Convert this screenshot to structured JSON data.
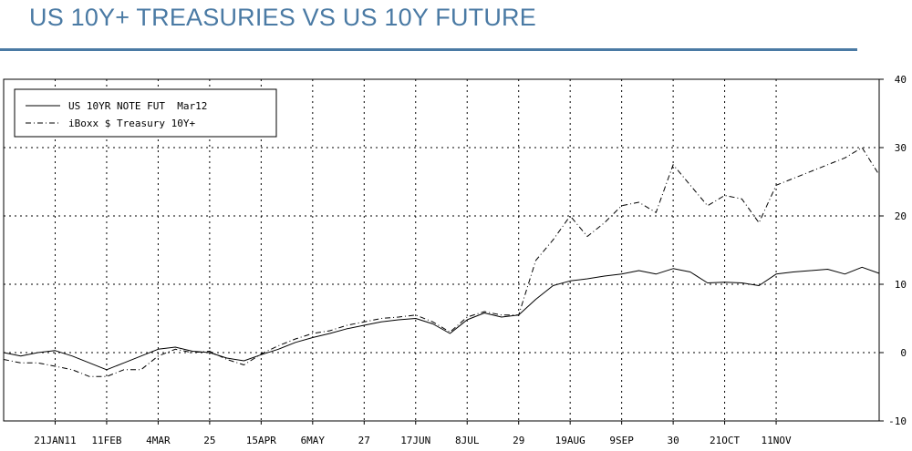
{
  "title": "US 10Y+ TREASURIES VS US 10Y FUTURE",
  "chart_data": {
    "type": "line",
    "xlabel": "",
    "ylabel": "",
    "ylim": [
      -10,
      40
    ],
    "yticks": [
      -10,
      0,
      10,
      20,
      30,
      40
    ],
    "x_range": [
      0,
      255
    ],
    "x_ticks": [
      {
        "label": "21JAN11",
        "pos": 15
      },
      {
        "label": "11FEB",
        "pos": 30
      },
      {
        "label": "4MAR",
        "pos": 45
      },
      {
        "label": "25",
        "pos": 60
      },
      {
        "label": "15APR",
        "pos": 75
      },
      {
        "label": "6MAY",
        "pos": 90
      },
      {
        "label": "27",
        "pos": 105
      },
      {
        "label": "17JUN",
        "pos": 120
      },
      {
        "label": "8JUL",
        "pos": 135
      },
      {
        "label": "29",
        "pos": 150
      },
      {
        "label": "19AUG",
        "pos": 165
      },
      {
        "label": "9SEP",
        "pos": 180
      },
      {
        "label": "30",
        "pos": 195
      },
      {
        "label": "21OCT",
        "pos": 210
      },
      {
        "label": "11NOV",
        "pos": 225
      }
    ],
    "grid": true,
    "legend_position": "top-left",
    "series": [
      {
        "name": "US 10YR NOTE FUT  Mar12",
        "style": "solid",
        "x": [
          0,
          5,
          10,
          15,
          20,
          25,
          30,
          35,
          40,
          45,
          50,
          55,
          60,
          65,
          70,
          75,
          80,
          85,
          90,
          95,
          100,
          105,
          110,
          115,
          120,
          125,
          130,
          135,
          140,
          145,
          150,
          155,
          160,
          165,
          170,
          175,
          180,
          185,
          190,
          195,
          200,
          205,
          210,
          215,
          220,
          225,
          230,
          235,
          240,
          245,
          250,
          255
        ],
        "values": [
          0,
          -0.5,
          0,
          0.3,
          -0.5,
          -1.5,
          -2.5,
          -1.5,
          -0.5,
          0.5,
          0.8,
          0.2,
          0,
          -0.8,
          -1.2,
          -0.3,
          0.5,
          1.5,
          2.2,
          2.8,
          3.5,
          4.0,
          4.5,
          4.8,
          5.0,
          4.2,
          2.8,
          4.8,
          5.8,
          5.2,
          5.5,
          7.8,
          9.8,
          10.5,
          10.8,
          11.2,
          11.5,
          12.0,
          11.5,
          12.3,
          11.8,
          10.2,
          10.3,
          10.2,
          9.8,
          11.5,
          11.8,
          12.0,
          12.2,
          11.5,
          12.5,
          11.6
        ]
      },
      {
        "name": "iBoxx $ Treasury 10Y+",
        "style": "dashdot",
        "x": [
          0,
          5,
          10,
          15,
          20,
          25,
          30,
          35,
          40,
          45,
          50,
          55,
          60,
          65,
          70,
          75,
          80,
          85,
          90,
          95,
          100,
          105,
          110,
          115,
          120,
          125,
          130,
          135,
          140,
          145,
          150,
          155,
          160,
          165,
          170,
          175,
          180,
          185,
          190,
          195,
          200,
          205,
          210,
          215,
          220,
          225,
          230,
          235,
          240,
          245,
          250,
          255
        ],
        "values": [
          -1,
          -1.5,
          -1.5,
          -2.0,
          -2.5,
          -3.5,
          -3.5,
          -2.5,
          -2.5,
          -0.5,
          0.5,
          0.0,
          0.2,
          -1.0,
          -1.8,
          -0.2,
          1.0,
          2.0,
          2.8,
          3.2,
          4.0,
          4.5,
          5.0,
          5.2,
          5.5,
          4.5,
          3.0,
          5.2,
          6.0,
          5.5,
          5.5,
          13.5,
          16.5,
          20.0,
          17.0,
          19.0,
          21.5,
          22.0,
          20.5,
          27.5,
          24.5,
          21.5,
          23.0,
          22.5,
          19.0,
          24.5,
          25.5,
          26.5,
          27.5,
          28.5,
          30.0,
          26.0
        ]
      }
    ]
  }
}
